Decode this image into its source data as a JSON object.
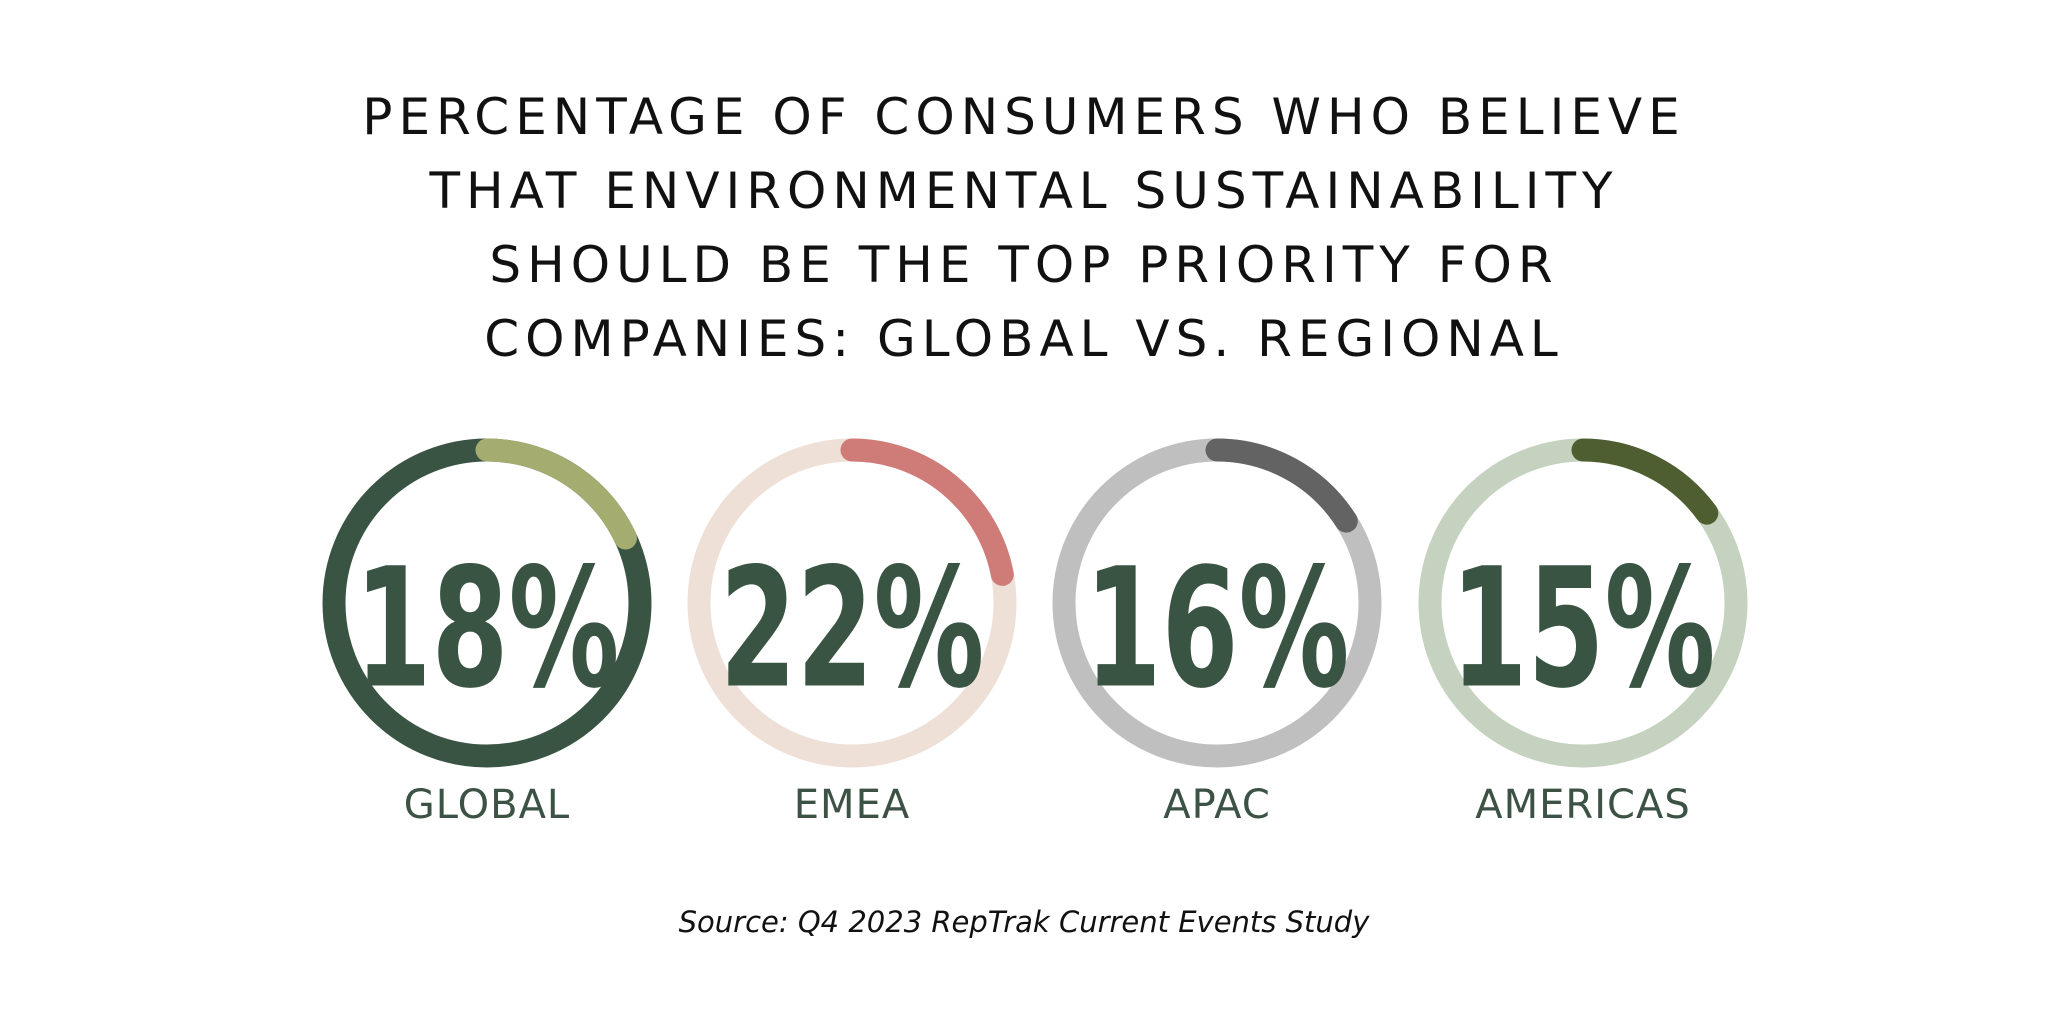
{
  "title_lines": [
    "PERCENTAGE OF CONSUMERS WHO BELIEVE",
    "THAT ENVIRONMENTAL SUSTAINABILITY",
    "SHOULD BE THE TOP PRIORITY FOR",
    "COMPANIES: GLOBAL VS. REGIONAL"
  ],
  "chart_data": {
    "type": "radial-progress",
    "title": "PERCENTAGE OF CONSUMERS WHO BELIEVE THAT ENVIRONMENTAL SUSTAINABILITY SHOULD BE THE TOP PRIORITY FOR COMPANIES: GLOBAL VS. REGIONAL",
    "unit": "%",
    "items": [
      {
        "label": "GLOBAL",
        "value": 18,
        "value_text": "18%",
        "track_color": "#3a5444",
        "arc_color": "#a5ac70"
      },
      {
        "label": "EMEA",
        "value": 22,
        "value_text": "22%",
        "track_color": "#eee0d6",
        "arc_color": "#cf7b78"
      },
      {
        "label": "APAC",
        "value": 16,
        "value_text": "16%",
        "track_color": "#bfbfbf",
        "arc_color": "#636363"
      },
      {
        "label": "AMERICAS",
        "value": 15,
        "value_text": "15%",
        "track_color": "#c5d2c0",
        "arc_color": "#4e5e30"
      }
    ]
  },
  "number_color": "#3a5444",
  "source": "Source: Q4 2023 RepTrak Current Events Study"
}
